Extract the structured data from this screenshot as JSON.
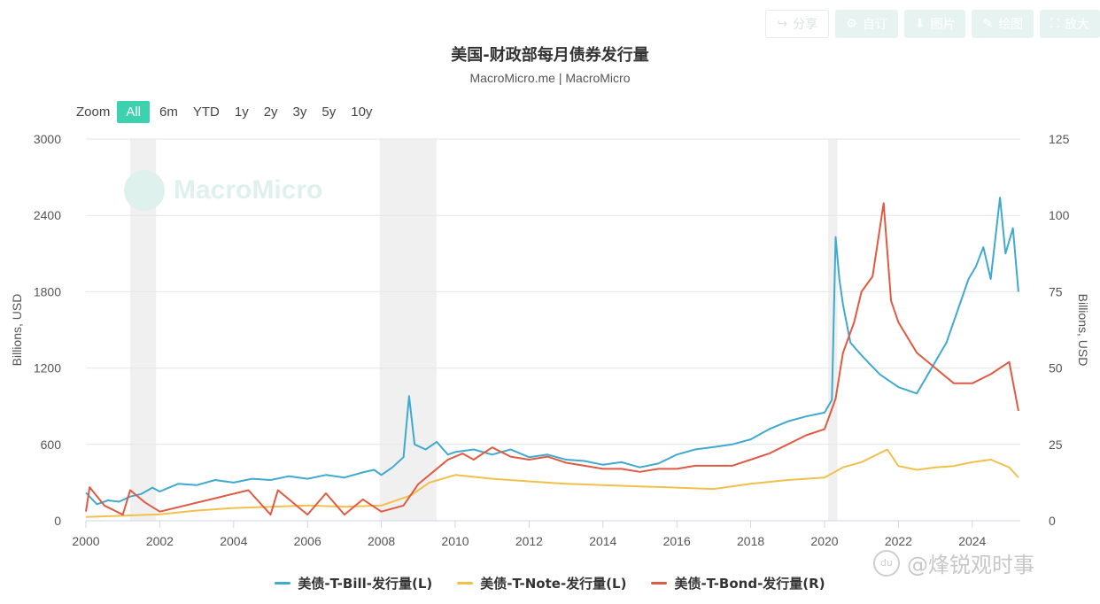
{
  "toolbar": {
    "share": "分享",
    "subscribe": "自订",
    "image": "图片",
    "draw": "绘图",
    "enlarge": "放大"
  },
  "header": {
    "title": "美国-财政部每月债券发行量",
    "subtitle": "MacroMicro.me | MacroMicro"
  },
  "zoom": {
    "label": "Zoom",
    "options": [
      "All",
      "6m",
      "YTD",
      "1y",
      "2y",
      "3y",
      "5y",
      "10y"
    ],
    "selected": "All"
  },
  "logo_text": "MacroMicro",
  "watermark": "@烽锐观时事",
  "watermark_badge": "du",
  "colors": {
    "tbill": "#3fa9d0",
    "tnote": "#f1c04b",
    "tbond": "#e05a43",
    "accent": "#3ed1b0",
    "recession": "#f0f0f0"
  },
  "chart_data": {
    "type": "line",
    "title": "美国-财政部每月债券发行量",
    "subtitle": "MacroMicro.me | MacroMicro",
    "ylabel_left": "Billions, USD",
    "ylabel_right": "Billions, USD",
    "xlim": [
      2000,
      2025.3
    ],
    "ylim_left": [
      0,
      3000
    ],
    "ylim_right": [
      0,
      125
    ],
    "x_ticks": [
      "2000",
      "2002",
      "2004",
      "2006",
      "2008",
      "2010",
      "2012",
      "2014",
      "2016",
      "2018",
      "2020",
      "2022",
      "2024"
    ],
    "y_ticks_left": [
      "0",
      "600",
      "1200",
      "1800",
      "2400",
      "3000"
    ],
    "y_ticks_right": [
      "0",
      "25",
      "50",
      "75",
      "100",
      "125"
    ],
    "grid": true,
    "legend_position": "bottom",
    "recession_shading": [
      [
        2001.2,
        2001.9
      ],
      [
        2007.95,
        2009.5
      ],
      [
        2020.1,
        2020.35
      ]
    ],
    "series": [
      {
        "name": "美债-T-Bill-发行量(L)",
        "axis": "left",
        "points": [
          [
            2000.0,
            220
          ],
          [
            2000.3,
            130
          ],
          [
            2000.6,
            160
          ],
          [
            2000.9,
            150
          ],
          [
            2001.2,
            190
          ],
          [
            2001.5,
            210
          ],
          [
            2001.8,
            260
          ],
          [
            2002.0,
            230
          ],
          [
            2002.5,
            290
          ],
          [
            2003.0,
            280
          ],
          [
            2003.5,
            320
          ],
          [
            2004.0,
            300
          ],
          [
            2004.5,
            330
          ],
          [
            2005.0,
            320
          ],
          [
            2005.5,
            350
          ],
          [
            2006.0,
            330
          ],
          [
            2006.5,
            360
          ],
          [
            2007.0,
            340
          ],
          [
            2007.5,
            380
          ],
          [
            2007.8,
            400
          ],
          [
            2008.0,
            360
          ],
          [
            2008.3,
            420
          ],
          [
            2008.6,
            500
          ],
          [
            2008.75,
            980
          ],
          [
            2008.9,
            600
          ],
          [
            2009.2,
            560
          ],
          [
            2009.5,
            620
          ],
          [
            2009.8,
            520
          ],
          [
            2010.0,
            540
          ],
          [
            2010.5,
            560
          ],
          [
            2011.0,
            520
          ],
          [
            2011.5,
            560
          ],
          [
            2012.0,
            500
          ],
          [
            2012.5,
            520
          ],
          [
            2013.0,
            480
          ],
          [
            2013.5,
            470
          ],
          [
            2014.0,
            440
          ],
          [
            2014.5,
            460
          ],
          [
            2015.0,
            420
          ],
          [
            2015.5,
            450
          ],
          [
            2016.0,
            520
          ],
          [
            2016.5,
            560
          ],
          [
            2017.0,
            580
          ],
          [
            2017.5,
            600
          ],
          [
            2018.0,
            640
          ],
          [
            2018.5,
            720
          ],
          [
            2019.0,
            780
          ],
          [
            2019.5,
            820
          ],
          [
            2020.0,
            850
          ],
          [
            2020.2,
            950
          ],
          [
            2020.3,
            2230
          ],
          [
            2020.4,
            1900
          ],
          [
            2020.5,
            1700
          ],
          [
            2020.7,
            1400
          ],
          [
            2021.0,
            1300
          ],
          [
            2021.5,
            1150
          ],
          [
            2022.0,
            1050
          ],
          [
            2022.5,
            1000
          ],
          [
            2023.0,
            1250
          ],
          [
            2023.3,
            1400
          ],
          [
            2023.6,
            1650
          ],
          [
            2023.9,
            1900
          ],
          [
            2024.1,
            2000
          ],
          [
            2024.3,
            2150
          ],
          [
            2024.5,
            1900
          ],
          [
            2024.75,
            2540
          ],
          [
            2024.9,
            2100
          ],
          [
            2025.1,
            2300
          ],
          [
            2025.25,
            1800
          ]
        ]
      },
      {
        "name": "美债-T-Note-发行量(L)",
        "axis": "left",
        "points": [
          [
            2000.0,
            30
          ],
          [
            2001.0,
            40
          ],
          [
            2002.0,
            50
          ],
          [
            2003.0,
            80
          ],
          [
            2004.0,
            100
          ],
          [
            2005.0,
            110
          ],
          [
            2006.0,
            120
          ],
          [
            2007.0,
            110
          ],
          [
            2008.0,
            120
          ],
          [
            2008.8,
            200
          ],
          [
            2009.3,
            300
          ],
          [
            2010.0,
            360
          ],
          [
            2011.0,
            330
          ],
          [
            2012.0,
            310
          ],
          [
            2013.0,
            290
          ],
          [
            2014.0,
            280
          ],
          [
            2015.0,
            270
          ],
          [
            2016.0,
            260
          ],
          [
            2017.0,
            250
          ],
          [
            2018.0,
            290
          ],
          [
            2019.0,
            320
          ],
          [
            2020.0,
            340
          ],
          [
            2020.5,
            420
          ],
          [
            2021.0,
            460
          ],
          [
            2021.7,
            560
          ],
          [
            2022.0,
            430
          ],
          [
            2022.5,
            400
          ],
          [
            2023.0,
            420
          ],
          [
            2023.5,
            430
          ],
          [
            2024.0,
            460
          ],
          [
            2024.5,
            480
          ],
          [
            2025.0,
            420
          ],
          [
            2025.25,
            340
          ]
        ]
      },
      {
        "name": "美债-T-Bond-发行量(R)",
        "axis": "right",
        "points": [
          [
            2000.0,
            3
          ],
          [
            2000.1,
            11
          ],
          [
            2000.5,
            5
          ],
          [
            2001.0,
            2
          ],
          [
            2001.2,
            10
          ],
          [
            2001.6,
            6
          ],
          [
            2002.0,
            3
          ],
          [
            2004.4,
            10
          ],
          [
            2005.0,
            2
          ],
          [
            2005.2,
            10
          ],
          [
            2006.0,
            2
          ],
          [
            2006.5,
            9
          ],
          [
            2007.0,
            2
          ],
          [
            2007.5,
            7
          ],
          [
            2008.0,
            3
          ],
          [
            2008.6,
            5
          ],
          [
            2009.0,
            12
          ],
          [
            2009.4,
            16
          ],
          [
            2009.8,
            20
          ],
          [
            2010.2,
            22
          ],
          [
            2010.5,
            20
          ],
          [
            2011.0,
            24
          ],
          [
            2011.5,
            21
          ],
          [
            2012.0,
            20
          ],
          [
            2012.5,
            21
          ],
          [
            2013.0,
            19
          ],
          [
            2013.5,
            18
          ],
          [
            2014.0,
            17
          ],
          [
            2014.5,
            17
          ],
          [
            2015.0,
            16
          ],
          [
            2015.5,
            17
          ],
          [
            2016.0,
            17
          ],
          [
            2016.5,
            18
          ],
          [
            2017.0,
            18
          ],
          [
            2017.5,
            18
          ],
          [
            2018.0,
            20
          ],
          [
            2018.5,
            22
          ],
          [
            2019.0,
            25
          ],
          [
            2019.5,
            28
          ],
          [
            2020.0,
            30
          ],
          [
            2020.3,
            40
          ],
          [
            2020.5,
            55
          ],
          [
            2020.8,
            65
          ],
          [
            2021.0,
            75
          ],
          [
            2021.3,
            80
          ],
          [
            2021.6,
            104
          ],
          [
            2021.8,
            72
          ],
          [
            2022.0,
            65
          ],
          [
            2022.5,
            55
          ],
          [
            2023.0,
            50
          ],
          [
            2023.5,
            45
          ],
          [
            2024.0,
            45
          ],
          [
            2024.5,
            48
          ],
          [
            2025.0,
            52
          ],
          [
            2025.25,
            36
          ]
        ]
      }
    ]
  }
}
